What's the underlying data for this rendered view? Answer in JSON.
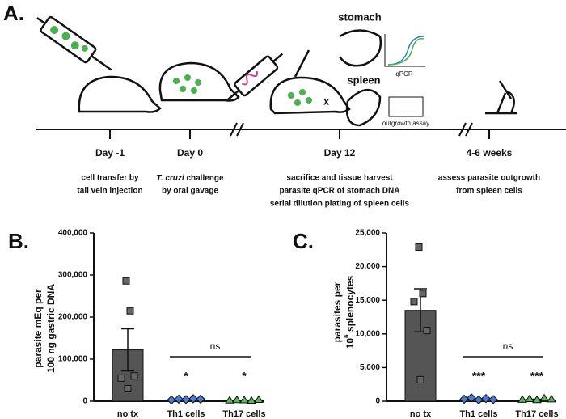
{
  "panel_a": {
    "label": "A.",
    "stomach": "stomach",
    "spleen": "spleen",
    "qpcr": "qPCR",
    "outgrowth": "outgrowth assay",
    "mark": "x",
    "timepoints": [
      {
        "day": "Day -1",
        "lines": [
          "cell transfer by",
          "tail vein injection"
        ]
      },
      {
        "day": "Day 0",
        "lines_rich": [
          [
            "T. cruzi",
            " challenge"
          ]
        ],
        "lines": [
          "by oral gavage"
        ]
      },
      {
        "day": "Day 12",
        "lines": [
          "sacrifice and tissue harvest",
          "parasite qPCR of stomach DNA",
          "serial dilution plating of spleen cells"
        ]
      },
      {
        "day": "4-6 weeks",
        "lines": [
          "assess parasite outgrowth",
          "from spleen cells"
        ]
      }
    ]
  },
  "chart_data": [
    {
      "type": "bar",
      "label": "B.",
      "y_label": [
        "parasite mEq per",
        "100 ng gastric DNA"
      ],
      "categories": [
        "no tx",
        "Th1 cells",
        "Th17 cells"
      ],
      "values": [
        122000,
        4500,
        2000
      ],
      "errors": [
        50000,
        600,
        400
      ],
      "color": "#555555",
      "points": [
        [
          286000,
          215000,
          55000,
          60000,
          30000
        ],
        [
          3000,
          5000,
          4000,
          6000,
          5000
        ],
        [
          1500,
          2500,
          2000,
          1000,
          3000
        ]
      ],
      "point_colors": [
        "#666666",
        "#4a7bd0",
        "#5cb85c"
      ],
      "significance": [
        null,
        "*",
        "*"
      ],
      "comparison": "ns",
      "ylim": [
        0,
        400000
      ],
      "yticks": [
        0,
        {
          "value": 100000,
          "label": "100,000"
        },
        {
          "value": 200000,
          "label": "200,000"
        },
        {
          "value": 300000,
          "label": "300,000"
        },
        {
          "value": 400000,
          "label": "400,000"
        }
      ]
    },
    {
      "type": "bar",
      "label": "C.",
      "y_label_rich": [
        "parasites per",
        "10",
        "6",
        " splenocytes"
      ],
      "categories": [
        "no tx",
        "Th1 cells",
        "Th17 cells"
      ],
      "values": [
        13500,
        300,
        250
      ],
      "errors": [
        3200,
        60,
        50
      ],
      "color": "#555555",
      "points": [
        [
          22900,
          16000,
          14800,
          10500,
          3200
        ],
        [
          300,
          500,
          200,
          400,
          250
        ],
        [
          200,
          300,
          150,
          400,
          250
        ]
      ],
      "point_colors": [
        "#666666",
        "#4a7bd0",
        "#5cb85c"
      ],
      "significance": [
        null,
        "***",
        "***"
      ],
      "comparison": "ns",
      "ylim": [
        0,
        25000
      ],
      "yticks": [
        0,
        {
          "value": 5000,
          "label": "5,000"
        },
        {
          "value": 10000,
          "label": "10,000"
        },
        {
          "value": 15000,
          "label": "15,000"
        },
        {
          "value": 20000,
          "label": "20,000"
        },
        {
          "value": 25000,
          "label": "25,000"
        }
      ]
    }
  ]
}
